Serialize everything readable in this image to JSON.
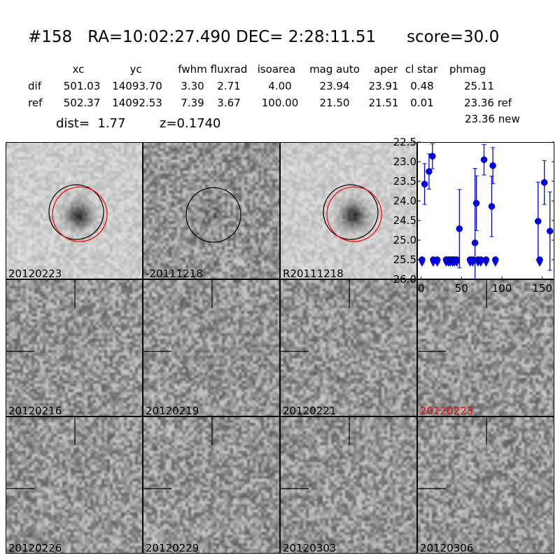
{
  "header": {
    "title": "#158   RA=10:02:27.490 DEC= 2:28:11.51      score=30.0",
    "columns": [
      "xc",
      "yc",
      "fwhm",
      "fluxrad",
      "isoarea",
      "mag auto",
      "aper",
      "cl star",
      "phmag"
    ],
    "dif": {
      "label": "dif",
      "values": [
        "501.03",
        "14093.70",
        "3.30",
        "2.71",
        "4.00",
        "23.94",
        "23.91",
        "0.48",
        "25.11"
      ]
    },
    "ref": {
      "label": "ref",
      "values": [
        "502.37",
        "14092.53",
        "7.39",
        "3.67",
        "100.00",
        "21.50",
        "21.51",
        "0.01",
        "23.36 ref"
      ]
    },
    "phmag_new": "23.36 new",
    "dist": "dist=  1.77",
    "z": "z=0.1740"
  },
  "stamps": [
    {
      "label": "20120223",
      "color": "#000000"
    },
    {
      "label": "-20111218",
      "color": "#000000"
    },
    {
      "label": "R20111218",
      "color": "#000000"
    },
    {
      "label": "20120216",
      "color": "#000000"
    },
    {
      "label": "20120219",
      "color": "#000000"
    },
    {
      "label": "20120221",
      "color": "#000000"
    },
    {
      "label": "20120223",
      "color": "#ff0000"
    },
    {
      "label": "20120226",
      "color": "#000000"
    },
    {
      "label": "20120229",
      "color": "#000000"
    },
    {
      "label": "20120303",
      "color": "#000000"
    },
    {
      "label": "20120306",
      "color": "#000000"
    }
  ],
  "chart_data": {
    "type": "scatter",
    "xlim": [
      -4,
      165
    ],
    "ylim": [
      26.0,
      22.5
    ],
    "y_inverted": true,
    "xticks": [
      "0",
      "50",
      "100",
      "150"
    ],
    "yticks": [
      "22.5",
      "23.0",
      "23.5",
      "24.0",
      "24.5",
      "25.0",
      "25.5",
      "26.0"
    ],
    "color": "#0000ff",
    "detections": [
      {
        "x": 4.3,
        "y": 23.57,
        "err": 0.52
      },
      {
        "x": 9.8,
        "y": 23.25,
        "err": 0.45
      },
      {
        "x": 14,
        "y": 22.86,
        "err": 0.32
      },
      {
        "x": 47.4,
        "y": 24.71,
        "err": 1.0
      },
      {
        "x": 66.7,
        "y": 25.07,
        "err": 1.9
      },
      {
        "x": 68.4,
        "y": 24.06,
        "err": 0.7
      },
      {
        "x": 77.9,
        "y": 22.95,
        "err": 0.39
      },
      {
        "x": 87.4,
        "y": 24.14,
        "err": 0.77
      },
      {
        "x": 88.8,
        "y": 23.1,
        "err": 0.46
      },
      {
        "x": 144.8,
        "y": 24.52,
        "err": 1.0
      },
      {
        "x": 152.6,
        "y": 23.53,
        "err": 0.56
      },
      {
        "x": 159.5,
        "y": 24.77,
        "err": 1.0
      }
    ],
    "upper_limits": {
      "y": 25.5,
      "x": [
        1.1,
        15,
        20,
        31,
        34,
        36,
        39,
        41,
        44,
        60.6,
        63.8,
        70.4,
        73.9,
        80.4,
        92,
        146.8
      ]
    }
  }
}
